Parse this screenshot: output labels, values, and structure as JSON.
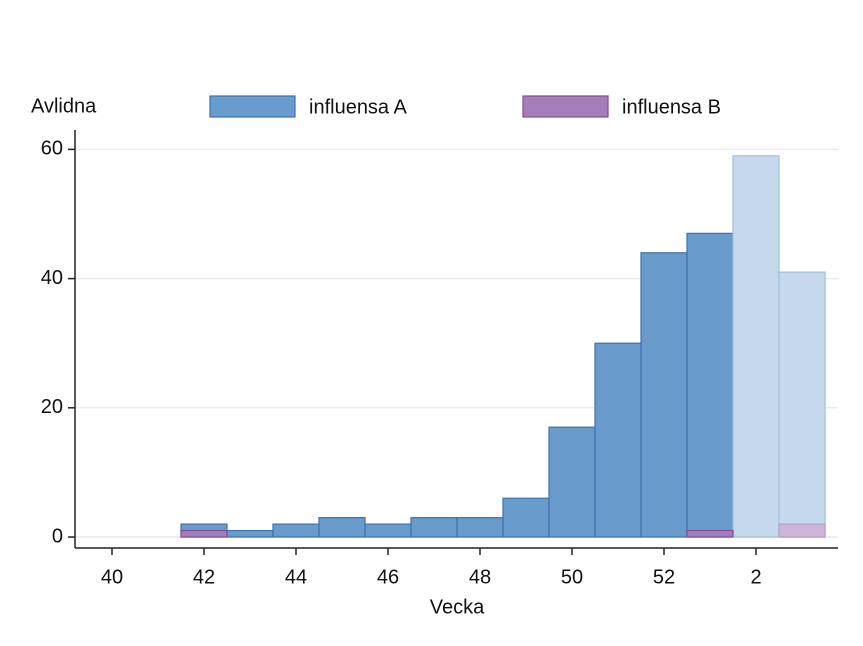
{
  "chart_data": {
    "type": "bar",
    "y_label": "Avlidna",
    "x_label": "Vecka",
    "categories": [
      "40",
      null,
      "42",
      null,
      "44",
      null,
      "46",
      null,
      "48",
      null,
      "50",
      null,
      "52",
      null,
      "2",
      null
    ],
    "series": [
      {
        "name": "influensa A",
        "color": "#6a9bcd",
        "colors": [
          "#6a9bcd",
          "#6a9bcd",
          "#6a9bcd",
          "#6a9bcd",
          "#6a9bcd",
          "#6a9bcd",
          "#6a9bcd",
          "#6a9bcd",
          "#6a9bcd",
          "#6a9bcd",
          "#6a9bcd",
          "#6a9bcd",
          "#6a9bcd",
          "#6a9bcd",
          "#c6d9ec",
          "#c6d9ec"
        ],
        "values": [
          null,
          null,
          2,
          1,
          2,
          3,
          2,
          3,
          3,
          6,
          17,
          30,
          44,
          47,
          59,
          41
        ]
      },
      {
        "name": "influensa B",
        "color": "#a67db9",
        "colors": [
          "#a67db9",
          "#a67db9",
          "#a67db9",
          "#a67db9",
          "#a67db9",
          "#a67db9",
          "#a67db9",
          "#a67db9",
          "#a67db9",
          "#a67db9",
          "#a67db9",
          "#a67db9",
          "#a67db9",
          "#a67db9",
          "#cbb5d9",
          "#cbb5d9"
        ],
        "values": [
          null,
          null,
          1,
          null,
          null,
          null,
          null,
          null,
          null,
          null,
          null,
          null,
          null,
          1,
          null,
          2
        ]
      }
    ],
    "ylim": [
      -1.7,
      63
    ],
    "yticks": [
      0,
      20,
      40,
      60
    ],
    "grid": true
  }
}
